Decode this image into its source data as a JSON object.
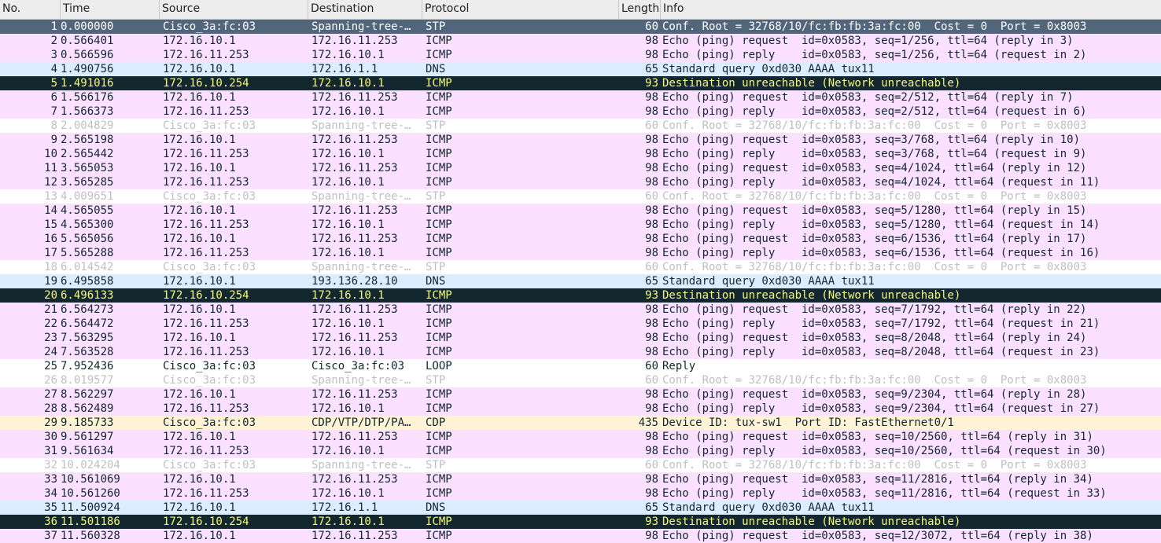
{
  "columns": {
    "no": "No.",
    "time": "Time",
    "source": "Source",
    "destination": "Destination",
    "protocol": "Protocol",
    "length": "Length",
    "info": "Info"
  },
  "row_styles": {
    "selected": {
      "bg": "#52667b",
      "fg": "#ffffff"
    },
    "icmp": {
      "bg": "#fce0ff",
      "fg": "#12272e"
    },
    "dns": {
      "bg": "#daeeff",
      "fg": "#12272e"
    },
    "stp": {
      "bg": "#ffffff",
      "fg": "#c0c0c0"
    },
    "error": {
      "bg": "#12272e",
      "fg": "#f7f87a"
    },
    "loop": {
      "bg": "#ffffff",
      "fg": "#12272e"
    },
    "cdp": {
      "bg": "#fff3d6",
      "fg": "#12272e"
    }
  },
  "packets": [
    {
      "no": "1",
      "time": "0.000000",
      "source": "Cisco_3a:fc:03",
      "destination": "Spanning-tree-…",
      "protocol": "STP",
      "length": "60",
      "info": "Conf. Root = 32768/10/fc:fb:fb:3a:fc:00  Cost = 0  Port = 0x8003",
      "style": "selected"
    },
    {
      "no": "2",
      "time": "0.566401",
      "source": "172.16.10.1",
      "destination": "172.16.11.253",
      "protocol": "ICMP",
      "length": "98",
      "info": "Echo (ping) request  id=0x0583, seq=1/256, ttl=64 (reply in 3)",
      "style": "icmp"
    },
    {
      "no": "3",
      "time": "0.566596",
      "source": "172.16.11.253",
      "destination": "172.16.10.1",
      "protocol": "ICMP",
      "length": "98",
      "info": "Echo (ping) reply    id=0x0583, seq=1/256, ttl=64 (request in 2)",
      "style": "icmp"
    },
    {
      "no": "4",
      "time": "1.490756",
      "source": "172.16.10.1",
      "destination": "172.16.1.1",
      "protocol": "DNS",
      "length": "65",
      "info": "Standard query 0xd030 AAAA tux11",
      "style": "dns"
    },
    {
      "no": "5",
      "time": "1.491016",
      "source": "172.16.10.254",
      "destination": "172.16.10.1",
      "protocol": "ICMP",
      "length": "93",
      "info": "Destination unreachable (Network unreachable)",
      "style": "error"
    },
    {
      "no": "6",
      "time": "1.566176",
      "source": "172.16.10.1",
      "destination": "172.16.11.253",
      "protocol": "ICMP",
      "length": "98",
      "info": "Echo (ping) request  id=0x0583, seq=2/512, ttl=64 (reply in 7)",
      "style": "icmp"
    },
    {
      "no": "7",
      "time": "1.566373",
      "source": "172.16.11.253",
      "destination": "172.16.10.1",
      "protocol": "ICMP",
      "length": "98",
      "info": "Echo (ping) reply    id=0x0583, seq=2/512, ttl=64 (request in 6)",
      "style": "icmp"
    },
    {
      "no": "8",
      "time": "2.004829",
      "source": "Cisco_3a:fc:03",
      "destination": "Spanning-tree-…",
      "protocol": "STP",
      "length": "60",
      "info": "Conf. Root = 32768/10/fc:fb:fb:3a:fc:00  Cost = 0  Port = 0x8003",
      "style": "stp"
    },
    {
      "no": "9",
      "time": "2.565198",
      "source": "172.16.10.1",
      "destination": "172.16.11.253",
      "protocol": "ICMP",
      "length": "98",
      "info": "Echo (ping) request  id=0x0583, seq=3/768, ttl=64 (reply in 10)",
      "style": "icmp"
    },
    {
      "no": "10",
      "time": "2.565442",
      "source": "172.16.11.253",
      "destination": "172.16.10.1",
      "protocol": "ICMP",
      "length": "98",
      "info": "Echo (ping) reply    id=0x0583, seq=3/768, ttl=64 (request in 9)",
      "style": "icmp"
    },
    {
      "no": "11",
      "time": "3.565053",
      "source": "172.16.10.1",
      "destination": "172.16.11.253",
      "protocol": "ICMP",
      "length": "98",
      "info": "Echo (ping) request  id=0x0583, seq=4/1024, ttl=64 (reply in 12)",
      "style": "icmp"
    },
    {
      "no": "12",
      "time": "3.565285",
      "source": "172.16.11.253",
      "destination": "172.16.10.1",
      "protocol": "ICMP",
      "length": "98",
      "info": "Echo (ping) reply    id=0x0583, seq=4/1024, ttl=64 (request in 11)",
      "style": "icmp"
    },
    {
      "no": "13",
      "time": "4.009651",
      "source": "Cisco_3a:fc:03",
      "destination": "Spanning-tree-…",
      "protocol": "STP",
      "length": "60",
      "info": "Conf. Root = 32768/10/fc:fb:fb:3a:fc:00  Cost = 0  Port = 0x8003",
      "style": "stp"
    },
    {
      "no": "14",
      "time": "4.565055",
      "source": "172.16.10.1",
      "destination": "172.16.11.253",
      "protocol": "ICMP",
      "length": "98",
      "info": "Echo (ping) request  id=0x0583, seq=5/1280, ttl=64 (reply in 15)",
      "style": "icmp"
    },
    {
      "no": "15",
      "time": "4.565300",
      "source": "172.16.11.253",
      "destination": "172.16.10.1",
      "protocol": "ICMP",
      "length": "98",
      "info": "Echo (ping) reply    id=0x0583, seq=5/1280, ttl=64 (request in 14)",
      "style": "icmp"
    },
    {
      "no": "16",
      "time": "5.565056",
      "source": "172.16.10.1",
      "destination": "172.16.11.253",
      "protocol": "ICMP",
      "length": "98",
      "info": "Echo (ping) request  id=0x0583, seq=6/1536, ttl=64 (reply in 17)",
      "style": "icmp"
    },
    {
      "no": "17",
      "time": "5.565288",
      "source": "172.16.11.253",
      "destination": "172.16.10.1",
      "protocol": "ICMP",
      "length": "98",
      "info": "Echo (ping) reply    id=0x0583, seq=6/1536, ttl=64 (request in 16)",
      "style": "icmp"
    },
    {
      "no": "18",
      "time": "6.014542",
      "source": "Cisco_3a:fc:03",
      "destination": "Spanning-tree-…",
      "protocol": "STP",
      "length": "60",
      "info": "Conf. Root = 32768/10/fc:fb:fb:3a:fc:00  Cost = 0  Port = 0x8003",
      "style": "stp"
    },
    {
      "no": "19",
      "time": "6.495858",
      "source": "172.16.10.1",
      "destination": "193.136.28.10",
      "protocol": "DNS",
      "length": "65",
      "info": "Standard query 0xd030 AAAA tux11",
      "style": "dns"
    },
    {
      "no": "20",
      "time": "6.496133",
      "source": "172.16.10.254",
      "destination": "172.16.10.1",
      "protocol": "ICMP",
      "length": "93",
      "info": "Destination unreachable (Network unreachable)",
      "style": "error"
    },
    {
      "no": "21",
      "time": "6.564273",
      "source": "172.16.10.1",
      "destination": "172.16.11.253",
      "protocol": "ICMP",
      "length": "98",
      "info": "Echo (ping) request  id=0x0583, seq=7/1792, ttl=64 (reply in 22)",
      "style": "icmp"
    },
    {
      "no": "22",
      "time": "6.564472",
      "source": "172.16.11.253",
      "destination": "172.16.10.1",
      "protocol": "ICMP",
      "length": "98",
      "info": "Echo (ping) reply    id=0x0583, seq=7/1792, ttl=64 (request in 21)",
      "style": "icmp"
    },
    {
      "no": "23",
      "time": "7.563295",
      "source": "172.16.10.1",
      "destination": "172.16.11.253",
      "protocol": "ICMP",
      "length": "98",
      "info": "Echo (ping) request  id=0x0583, seq=8/2048, ttl=64 (reply in 24)",
      "style": "icmp"
    },
    {
      "no": "24",
      "time": "7.563528",
      "source": "172.16.11.253",
      "destination": "172.16.10.1",
      "protocol": "ICMP",
      "length": "98",
      "info": "Echo (ping) reply    id=0x0583, seq=8/2048, ttl=64 (request in 23)",
      "style": "icmp"
    },
    {
      "no": "25",
      "time": "7.952436",
      "source": "Cisco_3a:fc:03",
      "destination": "Cisco_3a:fc:03",
      "protocol": "LOOP",
      "length": "60",
      "info": "Reply",
      "style": "loop"
    },
    {
      "no": "26",
      "time": "8.019577",
      "source": "Cisco_3a:fc:03",
      "destination": "Spanning-tree-…",
      "protocol": "STP",
      "length": "60",
      "info": "Conf. Root = 32768/10/fc:fb:fb:3a:fc:00  Cost = 0  Port = 0x8003",
      "style": "stp"
    },
    {
      "no": "27",
      "time": "8.562297",
      "source": "172.16.10.1",
      "destination": "172.16.11.253",
      "protocol": "ICMP",
      "length": "98",
      "info": "Echo (ping) request  id=0x0583, seq=9/2304, ttl=64 (reply in 28)",
      "style": "icmp"
    },
    {
      "no": "28",
      "time": "8.562489",
      "source": "172.16.11.253",
      "destination": "172.16.10.1",
      "protocol": "ICMP",
      "length": "98",
      "info": "Echo (ping) reply    id=0x0583, seq=9/2304, ttl=64 (request in 27)",
      "style": "icmp"
    },
    {
      "no": "29",
      "time": "9.185733",
      "source": "Cisco_3a:fc:03",
      "destination": "CDP/VTP/DTP/PA…",
      "protocol": "CDP",
      "length": "435",
      "info": "Device ID: tux-sw1  Port ID: FastEthernet0/1",
      "style": "cdp"
    },
    {
      "no": "30",
      "time": "9.561297",
      "source": "172.16.10.1",
      "destination": "172.16.11.253",
      "protocol": "ICMP",
      "length": "98",
      "info": "Echo (ping) request  id=0x0583, seq=10/2560, ttl=64 (reply in 31)",
      "style": "icmp"
    },
    {
      "no": "31",
      "time": "9.561634",
      "source": "172.16.11.253",
      "destination": "172.16.10.1",
      "protocol": "ICMP",
      "length": "98",
      "info": "Echo (ping) reply    id=0x0583, seq=10/2560, ttl=64 (request in 30)",
      "style": "icmp"
    },
    {
      "no": "32",
      "time": "10.024204",
      "source": "Cisco_3a:fc:03",
      "destination": "Spanning-tree-…",
      "protocol": "STP",
      "length": "60",
      "info": "Conf. Root = 32768/10/fc:fb:fb:3a:fc:00  Cost = 0  Port = 0x8003",
      "style": "stp"
    },
    {
      "no": "33",
      "time": "10.561069",
      "source": "172.16.10.1",
      "destination": "172.16.11.253",
      "protocol": "ICMP",
      "length": "98",
      "info": "Echo (ping) request  id=0x0583, seq=11/2816, ttl=64 (reply in 34)",
      "style": "icmp"
    },
    {
      "no": "34",
      "time": "10.561260",
      "source": "172.16.11.253",
      "destination": "172.16.10.1",
      "protocol": "ICMP",
      "length": "98",
      "info": "Echo (ping) reply    id=0x0583, seq=11/2816, ttl=64 (request in 33)",
      "style": "icmp"
    },
    {
      "no": "35",
      "time": "11.500924",
      "source": "172.16.10.1",
      "destination": "172.16.1.1",
      "protocol": "DNS",
      "length": "65",
      "info": "Standard query 0xd030 AAAA tux11",
      "style": "dns"
    },
    {
      "no": "36",
      "time": "11.501186",
      "source": "172.16.10.254",
      "destination": "172.16.10.1",
      "protocol": "ICMP",
      "length": "93",
      "info": "Destination unreachable (Network unreachable)",
      "style": "error"
    },
    {
      "no": "37",
      "time": "11.560328",
      "source": "172.16.10.1",
      "destination": "172.16.11.253",
      "protocol": "ICMP",
      "length": "98",
      "info": "Echo (ping) request  id=0x0583, seq=12/3072, ttl=64 (reply in 38)",
      "style": "icmp"
    }
  ]
}
